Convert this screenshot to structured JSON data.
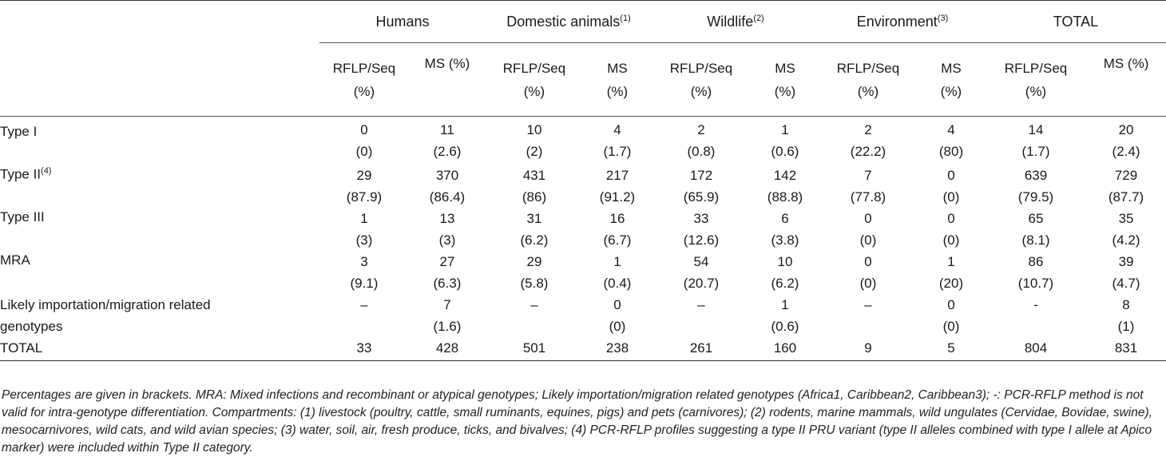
{
  "header": {
    "groups": [
      {
        "label": "Humans",
        "note": ""
      },
      {
        "label": "Domestic animals",
        "note": "(1)"
      },
      {
        "label": "Wildlife",
        "note": "(2)"
      },
      {
        "label": "Environment",
        "note": "(3)"
      },
      {
        "label": "TOTAL",
        "note": ""
      }
    ],
    "sub_a_line1": "RFLP/Seq",
    "sub_a_line2": "(%)",
    "sub_b_single": "MS (%)",
    "sub_b_line1": "MS",
    "sub_b_line2": "(%)"
  },
  "rows": [
    {
      "label": "Type I",
      "note": "",
      "counts": [
        "0",
        "11",
        "10",
        "4",
        "2",
        "1",
        "2",
        "4",
        "14",
        "20"
      ],
      "pcts": [
        "(0)",
        "(2.6)",
        "(2)",
        "(1.7)",
        "(0.8)",
        "(0.6)",
        "(22.2)",
        "(80)",
        "(1.7)",
        "(2.4)"
      ]
    },
    {
      "label": "Type II",
      "note": "(4)",
      "counts": [
        "29",
        "370",
        "431",
        "217",
        "172",
        "142",
        "7",
        "0",
        "639",
        "729"
      ],
      "pcts": [
        "(87.9)",
        "(86.4)",
        "(86)",
        "(91.2)",
        "(65.9)",
        "(88.8)",
        "(77.8)",
        "(0)",
        "(79.5)",
        "(87.7)"
      ]
    },
    {
      "label": "Type III",
      "note": "",
      "counts": [
        "1",
        "13",
        "31",
        "16",
        "33",
        "6",
        "0",
        "0",
        "65",
        "35"
      ],
      "pcts": [
        "(3)",
        "(3)",
        "(6.2)",
        "(6.7)",
        "(12.6)",
        "(3.8)",
        "(0)",
        "(0)",
        "(8.1)",
        "(4.2)"
      ]
    },
    {
      "label": "MRA",
      "note": "",
      "counts": [
        "3",
        "27",
        "29",
        "1",
        "54",
        "10",
        "0",
        "1",
        "86",
        "39"
      ],
      "pcts": [
        "(9.1)",
        "(6.3)",
        "(5.8)",
        "(0.4)",
        "(20.7)",
        "(6.2)",
        "(0)",
        "(20)",
        "(10.7)",
        "(4.7)"
      ]
    },
    {
      "label_line1": "Likely importation/migration related",
      "label_line2": "genotypes",
      "counts": [
        "–",
        "7",
        "–",
        "0",
        "–",
        "1",
        "–",
        "0",
        "-",
        "8"
      ],
      "pcts": [
        "",
        "(1.6)",
        "",
        "(0)",
        "",
        "(0.6)",
        "",
        "(0)",
        "",
        "(1)"
      ]
    }
  ],
  "total_row": {
    "label": "TOTAL",
    "values": [
      "33",
      "428",
      "501",
      "238",
      "261",
      "160",
      "9",
      "5",
      "804",
      "831"
    ]
  },
  "footnote": "Percentages are given in brackets. MRA: Mixed infections and recombinant or atypical genotypes; Likely importation/migration related genotypes (Africa1, Caribbean2, Caribbean3); -: PCR-RFLP method is not valid for intra-genotype differentiation. Compartments: (1) livestock (poultry, cattle, small ruminants, equines, pigs) and pets (carnivores); (2) rodents, marine mammals, wild ungulates (Cervidae, Bovidae, swine), mesocarnivores, wild cats, and wild avian species; (3) water, soil, air, fresh produce, ticks, and bivalves; (4) PCR-RFLP profiles suggesting a type II PRU variant (type II alleles combined with type I allele at Apico marker) were included within Type II category."
}
